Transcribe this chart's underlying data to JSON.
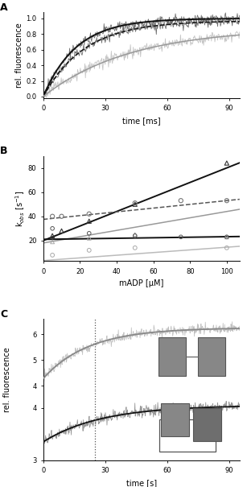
{
  "panel_A": {
    "xlabel": "time [ms]",
    "ylabel": "rel. fluorescence",
    "xlim": [
      0,
      95
    ],
    "ylim": [
      -0.02,
      1.08
    ],
    "yticks": [
      0.0,
      0.2,
      0.4,
      0.6,
      0.8,
      1.0
    ],
    "xticks": [
      0,
      30,
      60,
      90
    ],
    "fit_curves": [
      {
        "color": "#111111",
        "style": "solid",
        "lw": 1.4,
        "tau": 16,
        "A": 1.0
      },
      {
        "color": "#111111",
        "style": "dashed",
        "lw": 1.1,
        "tau": 20,
        "A": 0.97
      },
      {
        "color": "#999999",
        "style": "solid",
        "lw": 1.1,
        "tau": 42,
        "A": 0.88
      }
    ],
    "data_curves": [
      {
        "color": "#555555",
        "tau": 16,
        "A": 1.0,
        "noise": 0.03
      },
      {
        "color": "#555555",
        "tau": 20,
        "A": 0.97,
        "noise": 0.03
      },
      {
        "color": "#bbbbbb",
        "tau": 42,
        "A": 0.88,
        "noise": 0.035
      }
    ]
  },
  "panel_B": {
    "xlabel": "mADP [μM]",
    "ylabel": "k$_{obs}$ [s$^{-1}$]",
    "xlim": [
      0,
      107
    ],
    "ylim": [
      3,
      90
    ],
    "yticks": [
      20,
      40,
      60,
      80
    ],
    "xticks": [
      0,
      20,
      40,
      60,
      80,
      100
    ],
    "lines": [
      {
        "color": "#111111",
        "style": "solid",
        "lw": 1.4,
        "slope": 0.6,
        "intercept": 20.0
      },
      {
        "color": "#555555",
        "style": "dashed",
        "lw": 1.1,
        "slope": 0.155,
        "intercept": 37.5
      },
      {
        "color": "#999999",
        "style": "solid",
        "lw": 1.1,
        "slope": 0.26,
        "intercept": 18.0
      },
      {
        "color": "#111111",
        "style": "solid",
        "lw": 1.4,
        "slope": 0.022,
        "intercept": 21.0
      },
      {
        "color": "#bbbbbb",
        "style": "solid",
        "lw": 1.1,
        "slope": 0.11,
        "intercept": 3.5
      }
    ],
    "scatter": [
      {
        "color": "#333333",
        "marker": "^",
        "ms": 14,
        "lw": 0.8,
        "x": [
          5,
          10,
          25,
          50,
          100
        ],
        "y": [
          24,
          28,
          36,
          50,
          84
        ]
      },
      {
        "color": "#777777",
        "marker": "o",
        "ms": 14,
        "lw": 0.8,
        "x": [
          5,
          10,
          25,
          50,
          75,
          100
        ],
        "y": [
          40,
          40,
          42,
          51,
          53,
          53
        ]
      },
      {
        "color": "#aaaaaa",
        "marker": "^",
        "ms": 12,
        "lw": 0.7,
        "x": [
          5,
          25,
          50,
          100
        ],
        "y": [
          19,
          22,
          25,
          23
        ]
      },
      {
        "color": "#aaaaaa",
        "marker": "o",
        "ms": 12,
        "lw": 0.7,
        "x": [
          5,
          25,
          50,
          100
        ],
        "y": [
          8,
          12,
          14,
          14
        ]
      },
      {
        "color": "#555555",
        "marker": "o",
        "ms": 11,
        "lw": 0.7,
        "x": [
          5,
          25,
          50,
          75,
          100
        ],
        "y": [
          30,
          26,
          24,
          23,
          23
        ]
      }
    ]
  },
  "panel_C_top": {
    "xlim": [
      0,
      95
    ],
    "ylim": [
      3.85,
      6.6
    ],
    "yticks": [
      4,
      5,
      6
    ],
    "xticks": [
      0,
      30,
      60,
      90
    ],
    "vline": 25,
    "baseline": 4.28,
    "plateau": 6.25,
    "tau": 22,
    "noise_amp": 0.1,
    "color_data": "#bbbbbb",
    "color_fit": "#888888",
    "lw_fit": 1.3
  },
  "panel_C_bot": {
    "xlabel": "time [s]",
    "xlim": [
      0,
      95
    ],
    "ylim": [
      3.15,
      4.35
    ],
    "yticks": [
      3,
      4
    ],
    "xticks": [
      0,
      30,
      60,
      90
    ],
    "vline": 25,
    "baseline": 3.35,
    "plateau": 4.05,
    "tau": 28,
    "noise_amp": 0.055,
    "color_data": "#888888",
    "color_fit": "#111111",
    "lw_fit": 1.3
  }
}
